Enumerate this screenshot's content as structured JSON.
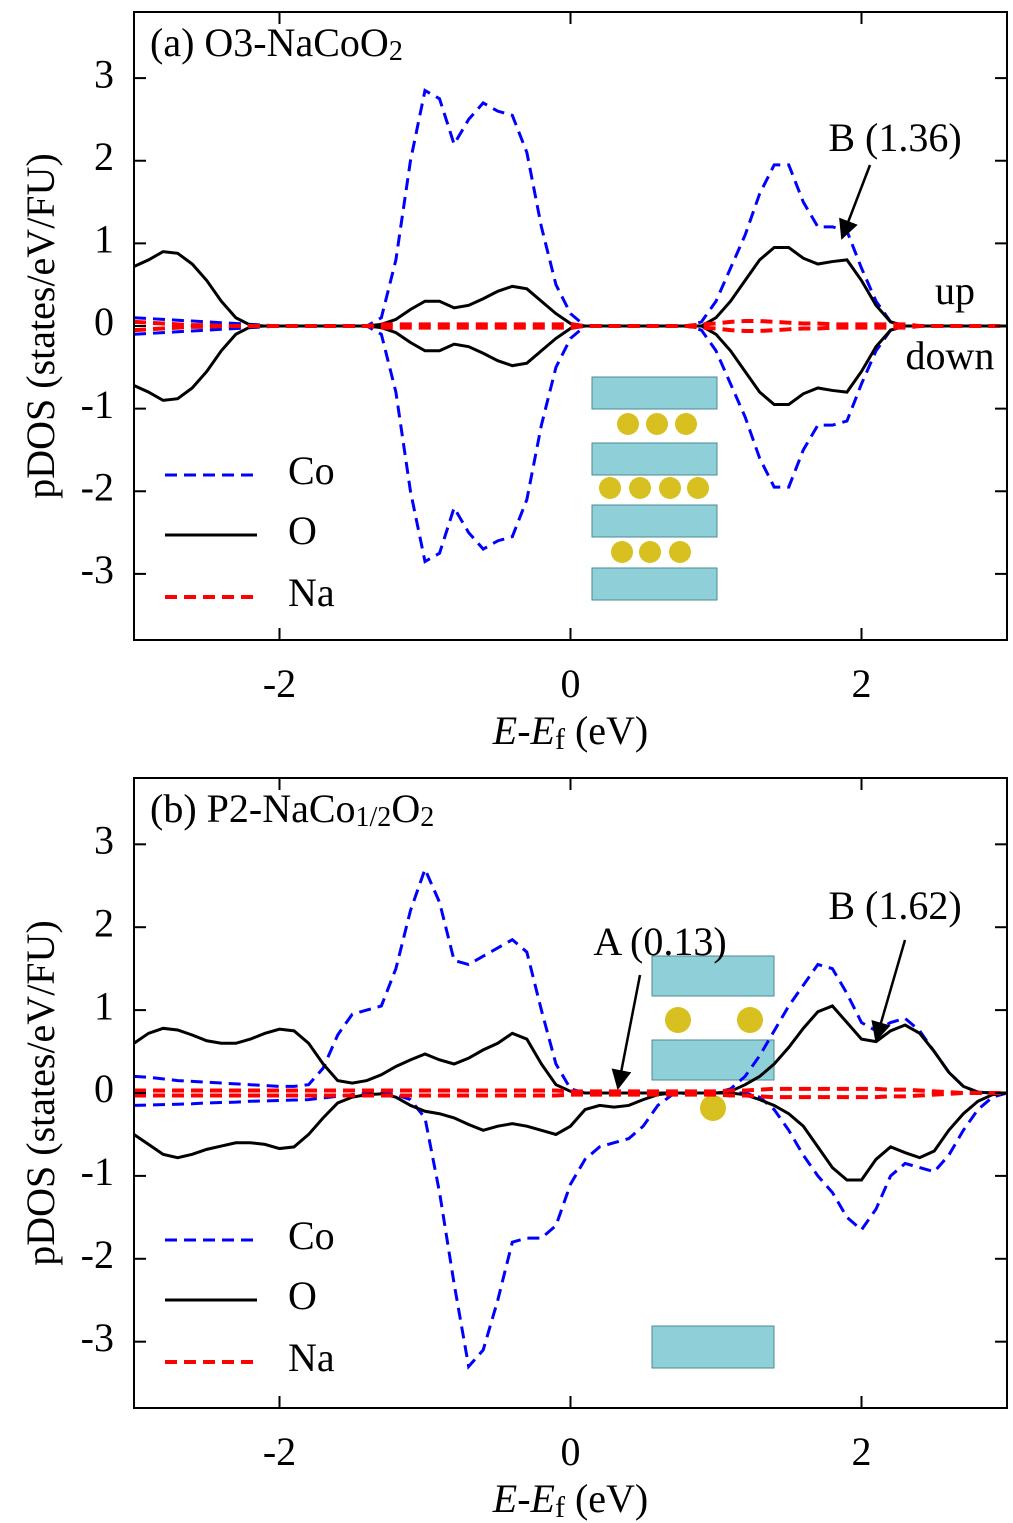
{
  "chart_data": [
    {
      "type": "line",
      "title": [
        "(a) O3-NaCoO",
        "2"
      ],
      "xlabel": [
        "E",
        "-",
        "E",
        "f",
        " (eV)"
      ],
      "ylabel": "pDOS (states/eV/FU)",
      "annotations": [
        "B (1.36)",
        "up",
        "down"
      ],
      "legend": "lower left",
      "xlim": [
        -3,
        3
      ],
      "xticks": [
        -2,
        0,
        2
      ],
      "ylim": [
        -3.8,
        3.8
      ],
      "yticks": [
        -3,
        -2,
        -1,
        0,
        1,
        2,
        3
      ],
      "x": [
        -3.0,
        -2.9,
        -2.8,
        -2.7,
        -2.6,
        -2.5,
        -2.4,
        -2.3,
        -2.2,
        -2.1,
        -2.0,
        -1.9,
        -1.8,
        -1.7,
        -1.6,
        -1.5,
        -1.4,
        -1.3,
        -1.2,
        -1.1,
        -1.0,
        -0.9,
        -0.8,
        -0.7,
        -0.6,
        -0.5,
        -0.4,
        -0.3,
        -0.2,
        -0.1,
        0.0,
        0.1,
        0.2,
        0.3,
        0.4,
        0.5,
        0.6,
        0.7,
        0.8,
        0.9,
        1.0,
        1.1,
        1.2,
        1.3,
        1.4,
        1.5,
        1.6,
        1.7,
        1.8,
        1.9,
        2.0,
        2.1,
        2.2,
        2.3,
        2.4,
        2.5,
        2.6,
        2.7,
        2.8,
        2.9,
        3.0
      ],
      "series": [
        {
          "name": "Co",
          "color": "#0000ff",
          "linestyle": "dashed",
          "values": [
            0.1,
            0.09,
            0.08,
            0.07,
            0.06,
            0.05,
            0.04,
            0.03,
            0.02,
            0.01,
            0,
            0,
            0,
            0,
            0,
            0,
            0,
            0.1,
            0.8,
            2.0,
            2.85,
            2.75,
            2.2,
            2.5,
            2.7,
            2.6,
            2.55,
            2.1,
            1.2,
            0.5,
            0.15,
            0,
            0,
            0,
            0,
            0,
            0,
            0,
            0,
            0.05,
            0.3,
            0.7,
            1.1,
            1.6,
            1.95,
            1.95,
            1.5,
            1.2,
            1.2,
            1.15,
            0.7,
            0.3,
            0.05,
            0,
            0,
            0,
            0,
            0,
            0,
            0,
            0
          ],
          "values_down": [
            -0.1,
            -0.09,
            -0.08,
            -0.07,
            -0.06,
            -0.05,
            -0.04,
            -0.03,
            -0.02,
            -0.01,
            0,
            0,
            0,
            0,
            0,
            0,
            0,
            -0.1,
            -0.8,
            -2.0,
            -2.85,
            -2.75,
            -2.2,
            -2.5,
            -2.7,
            -2.6,
            -2.55,
            -2.1,
            -1.2,
            -0.5,
            -0.15,
            0,
            0,
            0,
            0,
            0,
            0,
            0,
            0,
            -0.05,
            -0.3,
            -0.7,
            -1.1,
            -1.6,
            -1.95,
            -1.95,
            -1.5,
            -1.2,
            -1.2,
            -1.15,
            -0.7,
            -0.3,
            -0.05,
            0,
            0,
            0,
            0,
            0,
            0,
            0,
            0
          ]
        },
        {
          "name": "O",
          "color": "#000000",
          "linestyle": "solid",
          "values": [
            0.72,
            0.8,
            0.9,
            0.88,
            0.75,
            0.55,
            0.3,
            0.1,
            0.01,
            0,
            0,
            0,
            0,
            0,
            0,
            0,
            0,
            0.02,
            0.08,
            0.2,
            0.3,
            0.3,
            0.22,
            0.25,
            0.33,
            0.42,
            0.48,
            0.45,
            0.3,
            0.15,
            0.03,
            0,
            0,
            0,
            0,
            0,
            0,
            0,
            0,
            0,
            0.1,
            0.3,
            0.55,
            0.8,
            0.95,
            0.95,
            0.82,
            0.75,
            0.78,
            0.8,
            0.55,
            0.25,
            0.05,
            0,
            0,
            0,
            0,
            0,
            0,
            0,
            0
          ],
          "values_down": [
            -0.72,
            -0.8,
            -0.9,
            -0.88,
            -0.75,
            -0.55,
            -0.3,
            -0.1,
            -0.01,
            0,
            0,
            0,
            0,
            0,
            0,
            0,
            0,
            -0.02,
            -0.08,
            -0.2,
            -0.3,
            -0.3,
            -0.22,
            -0.25,
            -0.33,
            -0.42,
            -0.48,
            -0.45,
            -0.3,
            -0.15,
            -0.03,
            0,
            0,
            0,
            0,
            0,
            0,
            0,
            0,
            0,
            -0.1,
            -0.3,
            -0.55,
            -0.8,
            -0.95,
            -0.95,
            -0.82,
            -0.75,
            -0.78,
            -0.8,
            -0.55,
            -0.25,
            -0.05,
            0,
            0,
            0,
            0,
            0,
            0,
            0,
            0
          ]
        },
        {
          "name": "Na",
          "color": "#ff0000",
          "linestyle": "dashed",
          "values": [
            0.05,
            0.04,
            0.03,
            0.02,
            0.01,
            0.01,
            0,
            0,
            0,
            0,
            0,
            0,
            0,
            0,
            0,
            0,
            0,
            0.02,
            0.02,
            0.02,
            0.02,
            0.02,
            0.02,
            0.02,
            0.02,
            0.02,
            0.02,
            0.02,
            0.02,
            0.02,
            0.02,
            0,
            0,
            0,
            0,
            0,
            0,
            0,
            0,
            0.02,
            0.03,
            0.05,
            0.06,
            0.06,
            0.05,
            0.04,
            0.03,
            0.03,
            0.02,
            0.02,
            0.02,
            0.02,
            0.02,
            0.02,
            0,
            0,
            0,
            0,
            0,
            0,
            0
          ],
          "values_down": [
            -0.05,
            -0.04,
            -0.03,
            -0.02,
            -0.01,
            -0.01,
            0,
            0,
            0,
            0,
            0,
            0,
            0,
            0,
            0,
            0,
            0,
            -0.02,
            -0.02,
            -0.02,
            -0.02,
            -0.02,
            -0.02,
            -0.02,
            -0.02,
            -0.02,
            -0.02,
            -0.02,
            -0.02,
            -0.02,
            -0.02,
            0,
            0,
            0,
            0,
            0,
            0,
            0,
            0,
            -0.02,
            -0.03,
            -0.05,
            -0.06,
            -0.06,
            -0.05,
            -0.04,
            -0.03,
            -0.03,
            -0.02,
            -0.02,
            -0.02,
            -0.02,
            -0.02,
            -0.02,
            0,
            0,
            0,
            0,
            0,
            0,
            0
          ]
        }
      ]
    },
    {
      "type": "line",
      "title": [
        "(b) P2-NaCo",
        "1/2",
        "O",
        "2"
      ],
      "xlabel": [
        "E",
        "-",
        "E",
        "f",
        " (eV)"
      ],
      "ylabel": "pDOS (states/eV/FU)",
      "annotations": [
        "A (0.13)",
        "B (1.62)"
      ],
      "legend": "lower left",
      "xlim": [
        -3,
        3
      ],
      "xticks": [
        -2,
        0,
        2
      ],
      "ylim": [
        -3.8,
        3.8
      ],
      "yticks": [
        -3,
        -2,
        -1,
        0,
        1,
        2,
        3
      ],
      "x": [
        -3.0,
        -2.9,
        -2.8,
        -2.7,
        -2.6,
        -2.5,
        -2.4,
        -2.3,
        -2.2,
        -2.1,
        -2.0,
        -1.9,
        -1.8,
        -1.7,
        -1.6,
        -1.5,
        -1.4,
        -1.3,
        -1.2,
        -1.1,
        -1.0,
        -0.9,
        -0.8,
        -0.7,
        -0.6,
        -0.5,
        -0.4,
        -0.3,
        -0.2,
        -0.1,
        0.0,
        0.1,
        0.2,
        0.3,
        0.4,
        0.5,
        0.6,
        0.7,
        0.8,
        0.9,
        1.0,
        1.1,
        1.2,
        1.3,
        1.4,
        1.5,
        1.6,
        1.7,
        1.8,
        1.9,
        2.0,
        2.1,
        2.2,
        2.3,
        2.4,
        2.5,
        2.6,
        2.7,
        2.8,
        2.9,
        3.0
      ],
      "series": [
        {
          "name": "Co",
          "color": "#0000ff",
          "linestyle": "dashed",
          "values": [
            0.2,
            0.19,
            0.17,
            0.15,
            0.14,
            0.13,
            0.12,
            0.11,
            0.1,
            0.09,
            0.08,
            0.08,
            0.1,
            0.3,
            0.7,
            0.95,
            1.0,
            1.05,
            1.5,
            2.2,
            2.7,
            2.3,
            1.6,
            1.55,
            1.65,
            1.75,
            1.85,
            1.7,
            1.0,
            0.35,
            0.05,
            0,
            0,
            0,
            0,
            0,
            0,
            0,
            0,
            0,
            0,
            0.05,
            0.2,
            0.45,
            0.75,
            1.05,
            1.3,
            1.55,
            1.5,
            1.2,
            0.85,
            0.75,
            0.85,
            0.9,
            0.75,
            0.5,
            0.25,
            0.08,
            0.01,
            0,
            0
          ],
          "values_down": [
            -0.15,
            -0.145,
            -0.14,
            -0.135,
            -0.13,
            -0.12,
            -0.115,
            -0.11,
            -0.1,
            -0.095,
            -0.09,
            -0.085,
            -0.08,
            -0.06,
            -0.04,
            -0.02,
            -0.01,
            0,
            -0.02,
            -0.08,
            -0.3,
            -1.2,
            -2.3,
            -3.3,
            -3.1,
            -2.5,
            -1.8,
            -1.75,
            -1.75,
            -1.6,
            -1.1,
            -0.8,
            -0.65,
            -0.6,
            -0.55,
            -0.4,
            -0.15,
            -0.02,
            0,
            0,
            0,
            0,
            0,
            -0.05,
            -0.2,
            -0.45,
            -0.75,
            -1.0,
            -1.2,
            -1.5,
            -1.65,
            -1.4,
            -1.0,
            -0.85,
            -0.9,
            -0.95,
            -0.75,
            -0.45,
            -0.2,
            -0.05,
            0
          ]
        },
        {
          "name": "O",
          "color": "#000000",
          "linestyle": "solid",
          "values": [
            0.6,
            0.72,
            0.78,
            0.76,
            0.7,
            0.63,
            0.6,
            0.6,
            0.65,
            0.72,
            0.77,
            0.75,
            0.6,
            0.35,
            0.15,
            0.12,
            0.15,
            0.22,
            0.32,
            0.4,
            0.47,
            0.4,
            0.35,
            0.42,
            0.52,
            0.6,
            0.72,
            0.65,
            0.35,
            0.1,
            0.02,
            0,
            0,
            0,
            0,
            0,
            0,
            0,
            0,
            0,
            0,
            0.02,
            0.1,
            0.2,
            0.35,
            0.55,
            0.78,
            0.98,
            1.05,
            0.85,
            0.65,
            0.62,
            0.75,
            0.82,
            0.72,
            0.5,
            0.25,
            0.08,
            0.01,
            0,
            0
          ],
          "values_down": [
            -0.5,
            -0.62,
            -0.74,
            -0.78,
            -0.74,
            -0.68,
            -0.64,
            -0.6,
            -0.6,
            -0.62,
            -0.67,
            -0.65,
            -0.5,
            -0.3,
            -0.12,
            -0.05,
            -0.02,
            -0.01,
            -0.05,
            -0.15,
            -0.22,
            -0.25,
            -0.3,
            -0.38,
            -0.45,
            -0.4,
            -0.37,
            -0.4,
            -0.45,
            -0.5,
            -0.4,
            -0.2,
            -0.15,
            -0.17,
            -0.15,
            -0.08,
            -0.02,
            0,
            0,
            0,
            0,
            0,
            -0.02,
            -0.08,
            -0.15,
            -0.25,
            -0.4,
            -0.65,
            -0.9,
            -1.05,
            -1.05,
            -0.8,
            -0.65,
            -0.72,
            -0.78,
            -0.7,
            -0.45,
            -0.25,
            -0.1,
            -0.02,
            0
          ]
        },
        {
          "name": "Na",
          "color": "#ff0000",
          "linestyle": "dashed",
          "values": [
            0.03,
            0.03,
            0.03,
            0.03,
            0.03,
            0.03,
            0.03,
            0.03,
            0.03,
            0.03,
            0.03,
            0.03,
            0.03,
            0.03,
            0.03,
            0.03,
            0.03,
            0.03,
            0.03,
            0.03,
            0.03,
            0.03,
            0.03,
            0.03,
            0.03,
            0.03,
            0.03,
            0.03,
            0.03,
            0.03,
            0.02,
            0.02,
            0.02,
            0.02,
            0.02,
            0.02,
            0.02,
            0.02,
            0.02,
            0.02,
            0.02,
            0.03,
            0.03,
            0.04,
            0.05,
            0.05,
            0.05,
            0.05,
            0.05,
            0.05,
            0.05,
            0.05,
            0.04,
            0.04,
            0.03,
            0.02,
            0.01,
            0,
            0,
            0,
            0
          ],
          "values_down": [
            -0.03,
            -0.03,
            -0.03,
            -0.03,
            -0.03,
            -0.03,
            -0.03,
            -0.03,
            -0.03,
            -0.03,
            -0.03,
            -0.03,
            -0.03,
            -0.03,
            -0.03,
            -0.03,
            -0.03,
            -0.03,
            -0.03,
            -0.03,
            -0.03,
            -0.03,
            -0.03,
            -0.03,
            -0.03,
            -0.03,
            -0.03,
            -0.03,
            -0.03,
            -0.03,
            -0.02,
            -0.02,
            -0.02,
            -0.02,
            -0.02,
            -0.02,
            -0.02,
            -0.02,
            -0.02,
            -0.02,
            -0.02,
            -0.03,
            -0.03,
            -0.04,
            -0.05,
            -0.05,
            -0.05,
            -0.05,
            -0.05,
            -0.05,
            -0.05,
            -0.05,
            -0.04,
            -0.04,
            -0.03,
            -0.02,
            -0.01,
            0,
            0,
            0,
            0
          ]
        }
      ]
    }
  ]
}
